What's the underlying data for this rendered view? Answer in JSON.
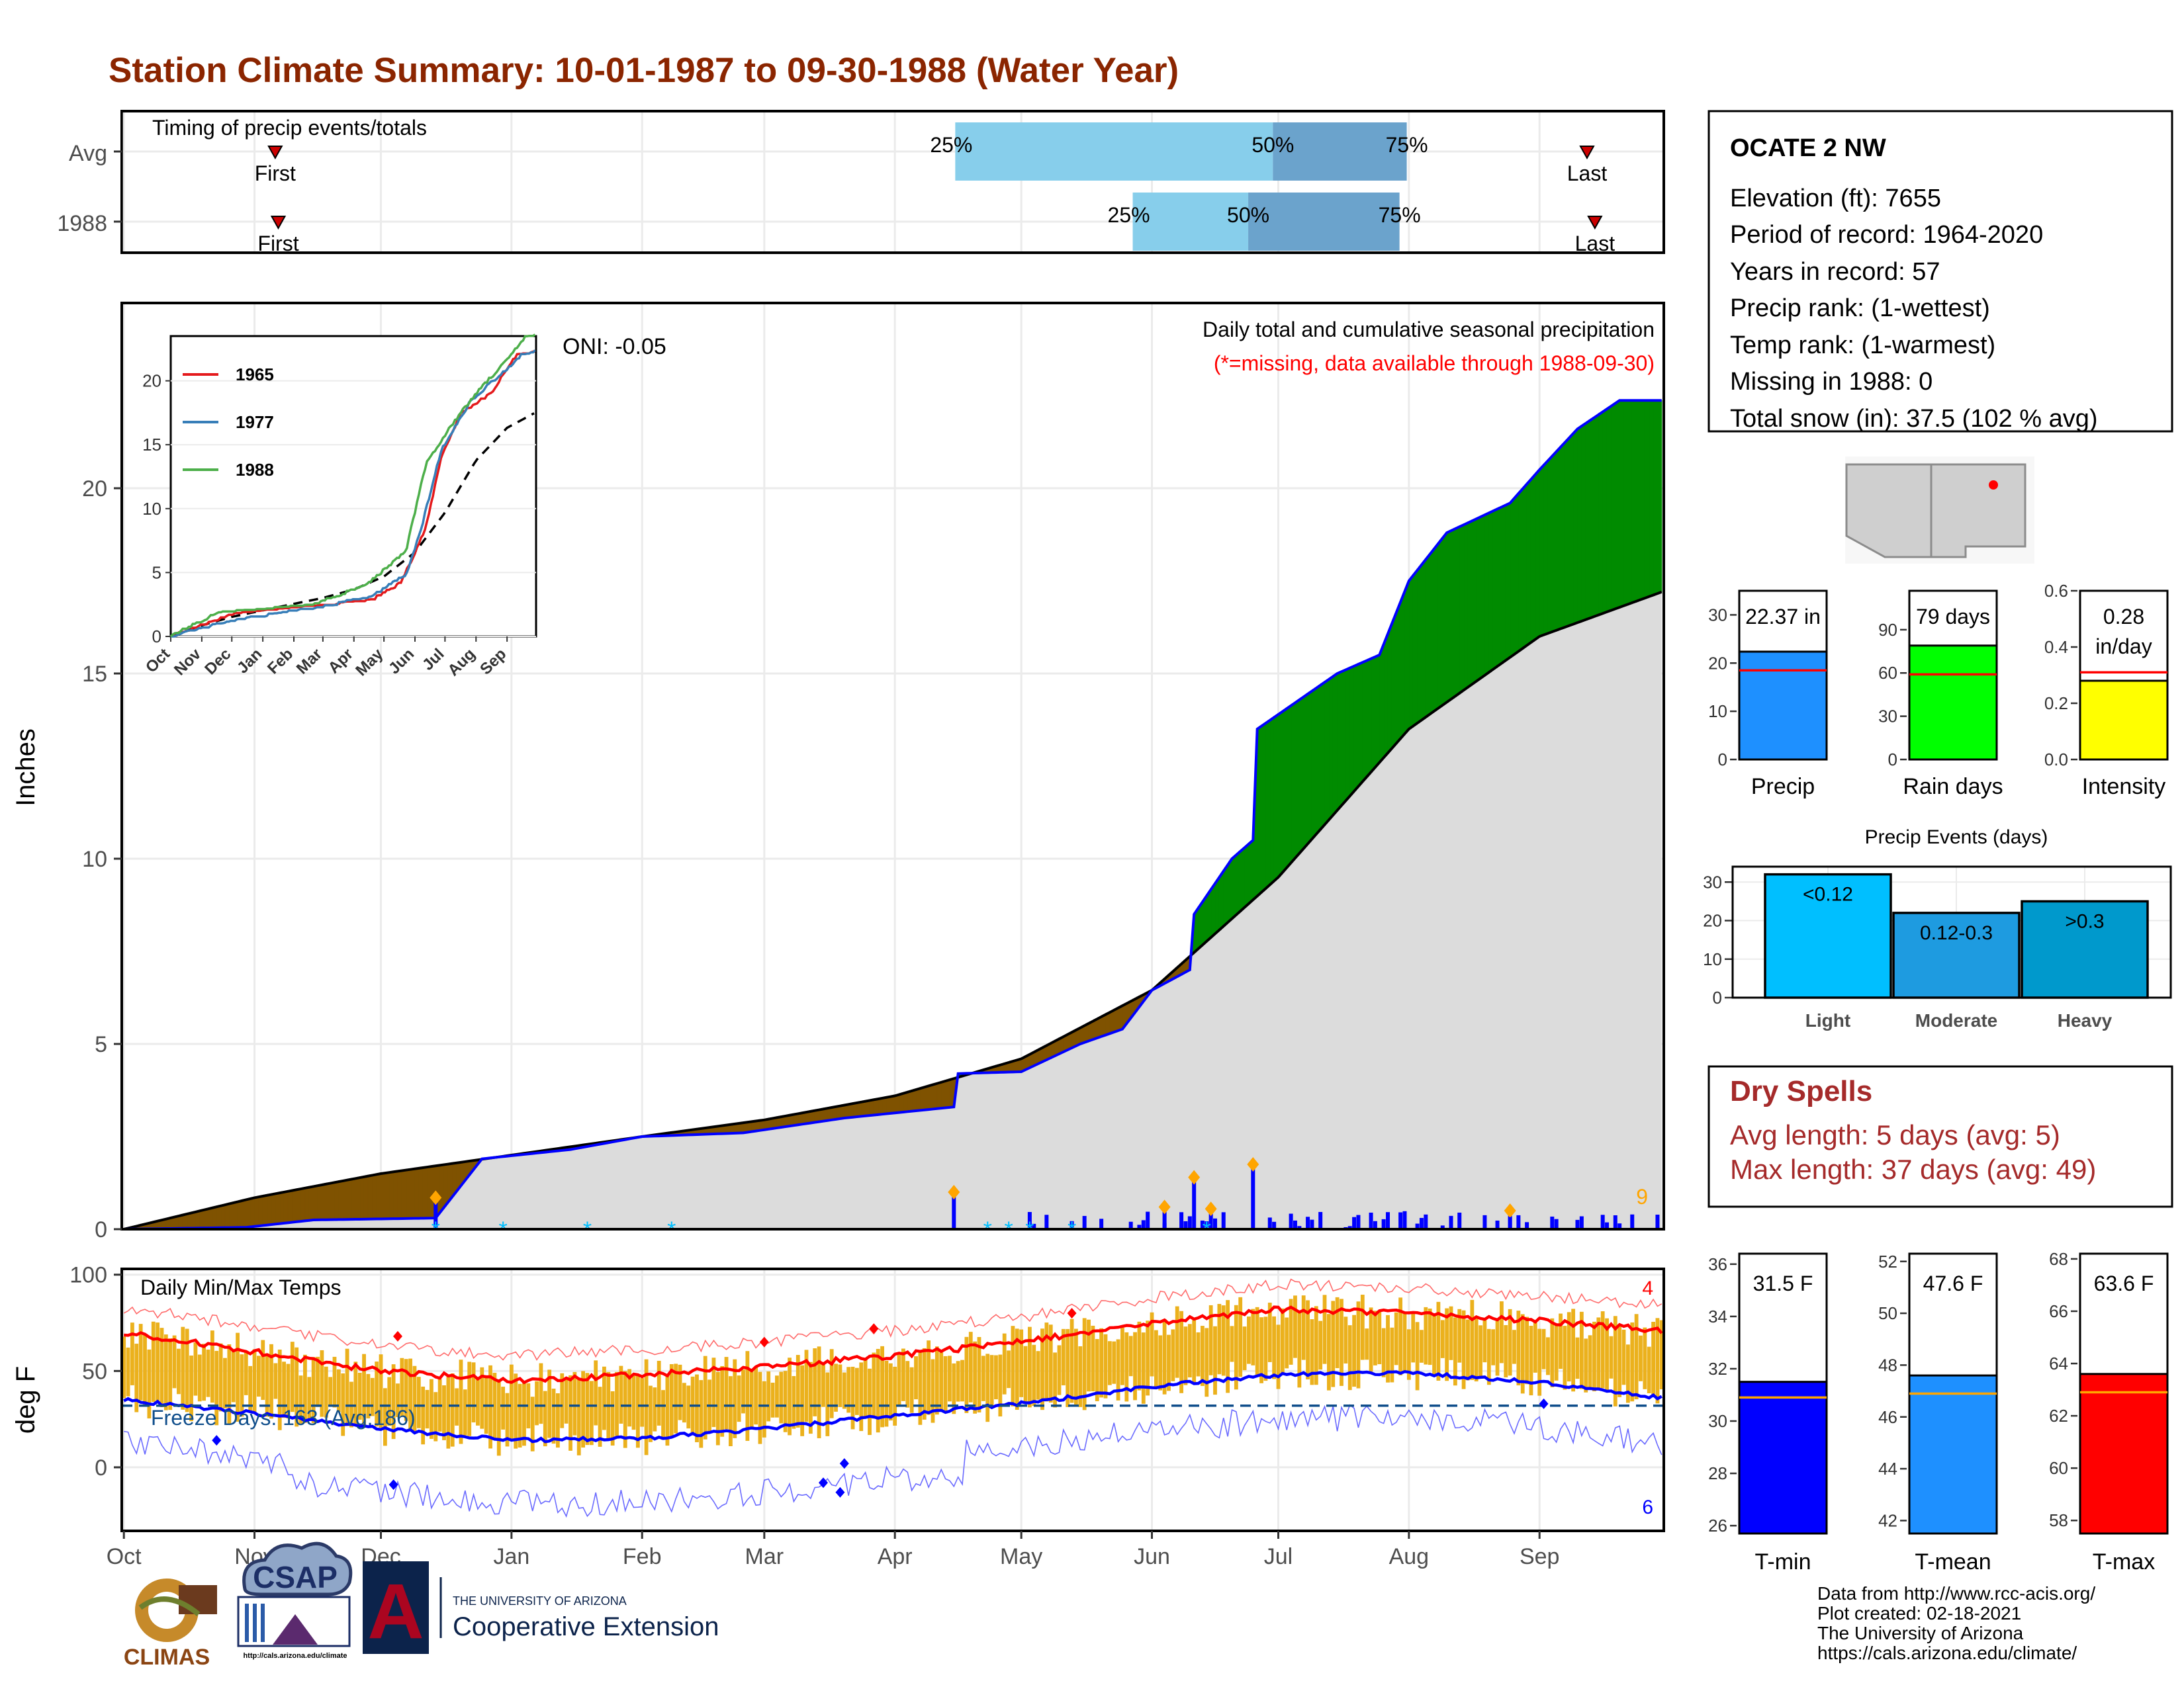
{
  "title": "Station Climate Summary: 10-01-1987 to 09-30-1988 (Water Year)",
  "colors": {
    "title": "#8B2500",
    "brown": "#7F5200",
    "green": "#008B00",
    "normal_fill": "#DCDCDC",
    "blue": "#0000FF",
    "orange": "#FFA500",
    "gold": "#EBB11D",
    "red": "#FF0000",
    "light_blue": "#87CEEB",
    "steel_blue": "#6BA3CC",
    "dry_red": "#A52A2A"
  },
  "timing": {
    "label": "Timing of precip events/totals",
    "rows": [
      {
        "label": "Avg",
        "first": "First",
        "last": "Last",
        "q25": "25%",
        "q50": "50%",
        "q75": "75%",
        "first_frac": 0.0995,
        "q25_frac": 0.5405,
        "q50_frac": 0.7465,
        "q75_frac": 0.8333,
        "last_frac": 0.9502
      },
      {
        "label": "1988",
        "first": "First",
        "last": "Last",
        "q25": "25%",
        "q50": "50%",
        "q75": "75%",
        "first_frac": 0.1015,
        "q25_frac": 0.6556,
        "q50_frac": 0.7305,
        "q75_frac": 0.8286,
        "last_frac": 0.9553
      }
    ]
  },
  "main": {
    "ylabel": "Inches",
    "title_line1": "Daily total and cumulative seasonal precipitation",
    "title_line2": "(*=missing, data available through 1988-09-30)",
    "oni": "ONI: -0.05",
    "count_label": "9"
  },
  "temps": {
    "ylabel": "deg F",
    "title": "Daily Min/Max Temps",
    "freeze": "Freeze Days: 163 (Avg:186)",
    "count_max": "4",
    "count_min": "6"
  },
  "months": [
    "Oct",
    "Nov",
    "Dec",
    "Jan",
    "Feb",
    "Mar",
    "Apr",
    "May",
    "Jun",
    "Jul",
    "Aug",
    "Sep"
  ],
  "inset": {
    "months": [
      "Oct",
      "Nov",
      "Dec",
      "Jan",
      "Feb",
      "Mar",
      "Apr",
      "May",
      "Jun",
      "Jul",
      "Aug",
      "Sep"
    ],
    "series": [
      {
        "name": "1965",
        "color": "#E41A1C"
      },
      {
        "name": "1977",
        "color": "#377EB8"
      },
      {
        "name": "1988",
        "color": "#4DAF4A"
      }
    ]
  },
  "station": {
    "name": "OCATE 2 NW",
    "lines": [
      "Elevation (ft): 7655",
      "Period of record: 1964-2020",
      "Years in record: 57",
      "Precip rank:  (1-wettest)",
      "Temp rank:  (1-warmest)",
      "Missing in 1988: 0",
      "Total snow (in): 37.5 (102 % avg)"
    ]
  },
  "mini_bars": [
    {
      "label": "Precip",
      "value_text": "22.37 in",
      "value": 22.37,
      "avg": 18.5,
      "ymax": 35,
      "ticks": [
        "0",
        "10",
        "20",
        "30"
      ],
      "tick_vals": [
        0,
        10,
        20,
        30
      ],
      "color": "#1E90FF"
    },
    {
      "label": "Rain days",
      "value_text": "79 days",
      "value": 79,
      "avg": 59,
      "ymax": 117,
      "ticks": [
        "0",
        "30",
        "60",
        "90"
      ],
      "tick_vals": [
        0,
        30,
        60,
        90
      ],
      "color": "#00FF00"
    },
    {
      "label": "Intensity",
      "value_text": "0.28 in/day",
      "value_line1": "0.28",
      "value_line2": "in/day",
      "value": 0.28,
      "avg": 0.31,
      "ymax": 0.6,
      "ticks": [
        "0.0",
        "0.2",
        "0.4",
        "0.6"
      ],
      "tick_vals": [
        0,
        0.2,
        0.4,
        0.6
      ],
      "color": "#FFFF00"
    }
  ],
  "events": {
    "title": "Precip Events (days)",
    "ticks": [
      "0",
      "10",
      "20",
      "30"
    ],
    "bars": [
      {
        "label": "Light",
        "value_label": "<0.12",
        "value": 32,
        "color": "#00BFFF"
      },
      {
        "label": "Moderate",
        "value_label": "0.12-0.3",
        "value": 22,
        "color": "#1E9BE0"
      },
      {
        "label": "Heavy",
        "value_label": ">0.3",
        "value": 25,
        "color": "#0099CC"
      }
    ]
  },
  "dry_spells": {
    "title": "Dry Spells",
    "avg": "Avg length: 5 days (avg: 5)",
    "max": "Max length: 37 days (avg: 49)"
  },
  "temp_bars": [
    {
      "label": "T-min",
      "value_text": "31.5 F",
      "value": 31.5,
      "avg": 30.9,
      "ymin": 25.7,
      "ymax": 36.4,
      "ticks": [
        "26",
        "28",
        "30",
        "32",
        "34",
        "36"
      ],
      "tick_vals": [
        26,
        28,
        30,
        32,
        34,
        36
      ],
      "color": "#0000FF"
    },
    {
      "label": "T-mean",
      "value_text": "47.6 F",
      "value": 47.6,
      "avg": 46.9,
      "ymin": 41.5,
      "ymax": 52.3,
      "ticks": [
        "42",
        "44",
        "46",
        "48",
        "50",
        "52"
      ],
      "tick_vals": [
        42,
        44,
        46,
        48,
        50,
        52
      ],
      "color": "#1E90FF"
    },
    {
      "label": "T-max",
      "value_text": "63.6 F",
      "value": 63.6,
      "avg": 62.9,
      "ymin": 57.5,
      "ymax": 68.2,
      "ticks": [
        "58",
        "60",
        "62",
        "64",
        "66",
        "68"
      ],
      "tick_vals": [
        58,
        60,
        62,
        64,
        66,
        68
      ],
      "color": "#FF0000"
    }
  ],
  "credits": [
    "Data from http://www.rcc-acis.org/",
    "Plot created: 02-18-2021",
    "The University of Arizona",
    "https://cals.arizona.edu/climate/"
  ],
  "logos": {
    "climas": "CLIMAS",
    "csap": "CSAP",
    "csap_url": "http://cals.arizona.edu/climate",
    "ua_line1": "THE UNIVERSITY OF ARIZONA",
    "ua_line2": "Cooperative Extension",
    "ua_letter": "A"
  },
  "chart_data": {
    "type": "area",
    "ylabel": "Inches",
    "ylim": [
      0,
      25
    ],
    "x_ticks": [
      "Oct",
      "Nov",
      "Dec",
      "Jan",
      "Feb",
      "Mar",
      "Apr",
      "May",
      "Jun",
      "Jul",
      "Aug",
      "Sep"
    ],
    "series": [
      {
        "name": "cumulative_1988",
        "x": [
          "1987-10-01",
          "1987-10-30",
          "1987-11-15",
          "1987-12-14",
          "1987-12-25",
          "1988-01-15",
          "1988-02-01",
          "1988-02-25",
          "1988-03-20",
          "1988-04-15",
          "1988-04-16",
          "1988-05-01",
          "1988-05-15",
          "1988-05-25",
          "1988-06-01",
          "1988-06-10",
          "1988-06-11",
          "1988-06-20",
          "1988-06-25",
          "1988-06-26",
          "1988-07-15",
          "1988-07-25",
          "1988-08-01",
          "1988-08-10",
          "1988-08-25",
          "1988-09-01",
          "1988-09-10",
          "1988-09-20",
          "1988-09-30"
        ],
        "y": [
          0,
          0.05,
          0.25,
          0.3,
          1.9,
          2.15,
          2.5,
          2.6,
          3.0,
          3.3,
          4.2,
          4.25,
          5.0,
          5.4,
          6.45,
          7.0,
          8.5,
          10.0,
          10.5,
          13.5,
          15.0,
          15.5,
          17.5,
          18.8,
          19.6,
          20.5,
          21.6,
          22.37,
          22.37
        ]
      },
      {
        "name": "normal",
        "x": [
          "1987-10-01",
          "1987-11-01",
          "1987-12-01",
          "1988-01-01",
          "1988-02-01",
          "1988-03-01",
          "1988-04-01",
          "1988-05-01",
          "1988-06-01",
          "1988-07-01",
          "1988-08-01",
          "1988-09-01",
          "1988-09-30"
        ],
        "y": [
          0,
          0.85,
          1.5,
          2.0,
          2.5,
          2.95,
          3.6,
          4.6,
          6.45,
          9.5,
          13.5,
          16.0,
          17.2
        ]
      }
    ],
    "daily_precip_peaks": [
      {
        "date": "1987-12-14",
        "y": 0.85
      },
      {
        "date": "1988-04-15",
        "y": 1.0
      },
      {
        "date": "1988-06-04",
        "y": 0.6
      },
      {
        "date": "1988-06-11",
        "y": 1.4
      },
      {
        "date": "1988-06-15",
        "y": 0.55
      },
      {
        "date": "1988-06-25",
        "y": 1.75
      },
      {
        "date": "1988-08-25",
        "y": 0.5
      }
    ],
    "temperature_panel": {
      "ylim": [
        -33,
        103
      ],
      "y_ticks": [
        0,
        50,
        100
      ],
      "avg_max_curve": {
        "x": [
          "1987-10-01",
          "1987-11-01",
          "1987-12-01",
          "1988-01-01",
          "1988-02-01",
          "1988-03-01",
          "1988-04-01",
          "1988-05-01",
          "1988-06-01",
          "1988-07-01",
          "1988-08-01",
          "1988-09-01",
          "1988-09-30"
        ],
        "y": [
          70,
          60,
          50,
          45,
          48,
          52,
          58,
          65,
          75,
          82,
          80,
          76,
          71
        ]
      },
      "avg_min_curve": {
        "x": [
          "1987-10-01",
          "1987-11-01",
          "1987-12-01",
          "1988-01-01",
          "1988-02-01",
          "1988-03-01",
          "1988-04-01",
          "1988-05-01",
          "1988-06-01",
          "1988-07-01",
          "1988-08-01",
          "1988-09-01",
          "1988-09-30"
        ],
        "y": [
          35,
          28,
          20,
          14,
          15,
          20,
          27,
          33,
          42,
          48,
          49,
          44,
          36
        ]
      },
      "freeze_line_F": 32
    }
  }
}
